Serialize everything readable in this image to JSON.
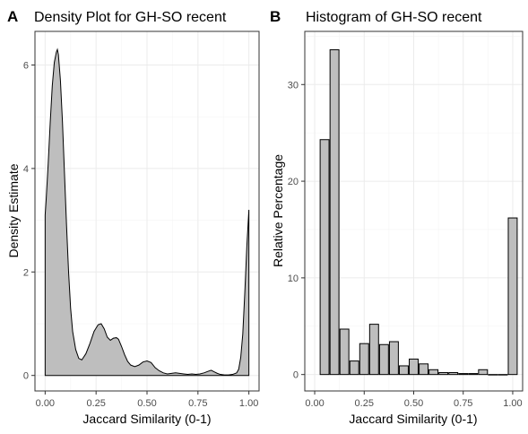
{
  "chart_data": [
    {
      "type": "area",
      "panel_letter": "A",
      "title": "Density Plot for GH-SO recent",
      "xlabel": "Jaccard Similarity (0-1)",
      "ylabel": "Density Estimate",
      "xlim": [
        -0.05,
        1.05
      ],
      "ylim": [
        -0.3,
        6.65
      ],
      "xticks": [
        0.0,
        0.25,
        0.5,
        0.75,
        1.0
      ],
      "xtick_labels": [
        "0.00",
        "0.25",
        "0.50",
        "0.75",
        "1.00"
      ],
      "yticks": [
        0,
        2,
        4,
        6
      ],
      "ytick_labels": [
        "0",
        "2",
        "4",
        "6"
      ],
      "grid": true,
      "fill": "#bebebe",
      "x": [
        0.0,
        0.005,
        0.015,
        0.025,
        0.035,
        0.045,
        0.055,
        0.06,
        0.065,
        0.075,
        0.085,
        0.095,
        0.105,
        0.115,
        0.125,
        0.135,
        0.15,
        0.165,
        0.18,
        0.2,
        0.22,
        0.24,
        0.26,
        0.275,
        0.29,
        0.305,
        0.32,
        0.335,
        0.35,
        0.36,
        0.375,
        0.39,
        0.405,
        0.42,
        0.44,
        0.46,
        0.48,
        0.5,
        0.52,
        0.54,
        0.56,
        0.58,
        0.6,
        0.62,
        0.64,
        0.66,
        0.68,
        0.7,
        0.72,
        0.74,
        0.76,
        0.78,
        0.8,
        0.815,
        0.83,
        0.845,
        0.86,
        0.88,
        0.9,
        0.92,
        0.94,
        0.95,
        0.96,
        0.97,
        0.98,
        0.99,
        1.0
      ],
      "y": [
        3.1,
        3.4,
        4.1,
        4.9,
        5.6,
        6.05,
        6.25,
        6.3,
        6.2,
        5.7,
        4.9,
        3.9,
        2.9,
        2.0,
        1.3,
        0.85,
        0.5,
        0.33,
        0.3,
        0.42,
        0.62,
        0.85,
        0.98,
        1.0,
        0.9,
        0.74,
        0.68,
        0.72,
        0.73,
        0.7,
        0.56,
        0.4,
        0.27,
        0.2,
        0.17,
        0.2,
        0.26,
        0.28,
        0.25,
        0.15,
        0.09,
        0.05,
        0.03,
        0.04,
        0.05,
        0.04,
        0.03,
        0.02,
        0.03,
        0.02,
        0.03,
        0.05,
        0.08,
        0.1,
        0.07,
        0.04,
        0.02,
        0.01,
        0.01,
        0.02,
        0.05,
        0.12,
        0.35,
        0.8,
        1.6,
        2.5,
        3.2
      ]
    },
    {
      "type": "bar",
      "panel_letter": "B",
      "title": "Histogram of GH-SO recent",
      "xlabel": "Jaccard Similarity (0-1)",
      "ylabel": "Relative Percentage",
      "xlim": [
        -0.05,
        1.05
      ],
      "ylim": [
        -1.7,
        35.5
      ],
      "xticks": [
        0.0,
        0.25,
        0.5,
        0.75,
        1.0
      ],
      "xtick_labels": [
        "0.00",
        "0.25",
        "0.50",
        "0.75",
        "1.00"
      ],
      "yticks": [
        0,
        10,
        20,
        30
      ],
      "ytick_labels": [
        "0",
        "10",
        "20",
        "30"
      ],
      "grid": true,
      "fill": "#bebebe",
      "bin_width": 0.05,
      "x": [
        0.05,
        0.1,
        0.15,
        0.2,
        0.25,
        0.3,
        0.35,
        0.4,
        0.45,
        0.5,
        0.55,
        0.6,
        0.65,
        0.7,
        0.75,
        0.8,
        0.85,
        0.9,
        0.95,
        1.0
      ],
      "values": [
        24.3,
        33.6,
        4.7,
        1.4,
        3.2,
        5.2,
        3.1,
        3.4,
        0.9,
        1.6,
        1.1,
        0.5,
        0.2,
        0.2,
        0.1,
        0.1,
        0.5,
        0.0,
        0.0,
        16.2
      ]
    }
  ]
}
